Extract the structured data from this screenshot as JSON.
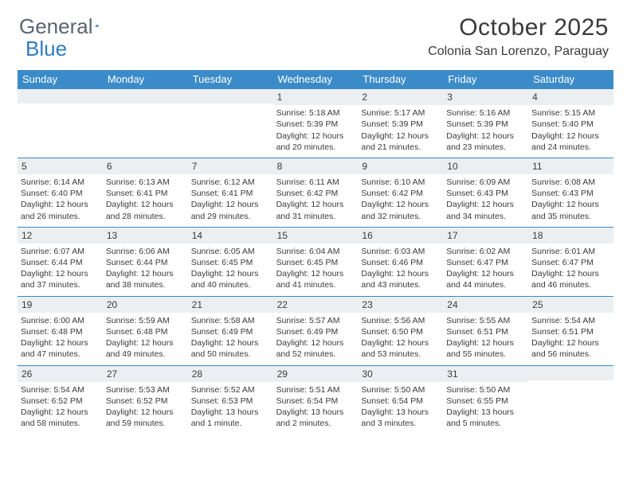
{
  "brand": {
    "part1": "General",
    "part2": "Blue"
  },
  "title": "October 2025",
  "location": "Colonia San Lorenzo, Paraguay",
  "colors": {
    "header_bg": "#3b8bc9",
    "daynum_bg": "#eceff1",
    "text": "#3a3a3a",
    "logo_gray": "#5a6570",
    "logo_blue": "#2e7cc0"
  },
  "day_names": [
    "Sunday",
    "Monday",
    "Tuesday",
    "Wednesday",
    "Thursday",
    "Friday",
    "Saturday"
  ],
  "weeks": [
    [
      {
        "n": "",
        "sr": "",
        "ss": "",
        "dl1": "",
        "dl2": ""
      },
      {
        "n": "",
        "sr": "",
        "ss": "",
        "dl1": "",
        "dl2": ""
      },
      {
        "n": "",
        "sr": "",
        "ss": "",
        "dl1": "",
        "dl2": ""
      },
      {
        "n": "1",
        "sr": "Sunrise: 5:18 AM",
        "ss": "Sunset: 5:39 PM",
        "dl1": "Daylight: 12 hours",
        "dl2": "and 20 minutes."
      },
      {
        "n": "2",
        "sr": "Sunrise: 5:17 AM",
        "ss": "Sunset: 5:39 PM",
        "dl1": "Daylight: 12 hours",
        "dl2": "and 21 minutes."
      },
      {
        "n": "3",
        "sr": "Sunrise: 5:16 AM",
        "ss": "Sunset: 5:39 PM",
        "dl1": "Daylight: 12 hours",
        "dl2": "and 23 minutes."
      },
      {
        "n": "4",
        "sr": "Sunrise: 5:15 AM",
        "ss": "Sunset: 5:40 PM",
        "dl1": "Daylight: 12 hours",
        "dl2": "and 24 minutes."
      }
    ],
    [
      {
        "n": "5",
        "sr": "Sunrise: 6:14 AM",
        "ss": "Sunset: 6:40 PM",
        "dl1": "Daylight: 12 hours",
        "dl2": "and 26 minutes."
      },
      {
        "n": "6",
        "sr": "Sunrise: 6:13 AM",
        "ss": "Sunset: 6:41 PM",
        "dl1": "Daylight: 12 hours",
        "dl2": "and 28 minutes."
      },
      {
        "n": "7",
        "sr": "Sunrise: 6:12 AM",
        "ss": "Sunset: 6:41 PM",
        "dl1": "Daylight: 12 hours",
        "dl2": "and 29 minutes."
      },
      {
        "n": "8",
        "sr": "Sunrise: 6:11 AM",
        "ss": "Sunset: 6:42 PM",
        "dl1": "Daylight: 12 hours",
        "dl2": "and 31 minutes."
      },
      {
        "n": "9",
        "sr": "Sunrise: 6:10 AM",
        "ss": "Sunset: 6:42 PM",
        "dl1": "Daylight: 12 hours",
        "dl2": "and 32 minutes."
      },
      {
        "n": "10",
        "sr": "Sunrise: 6:09 AM",
        "ss": "Sunset: 6:43 PM",
        "dl1": "Daylight: 12 hours",
        "dl2": "and 34 minutes."
      },
      {
        "n": "11",
        "sr": "Sunrise: 6:08 AM",
        "ss": "Sunset: 6:43 PM",
        "dl1": "Daylight: 12 hours",
        "dl2": "and 35 minutes."
      }
    ],
    [
      {
        "n": "12",
        "sr": "Sunrise: 6:07 AM",
        "ss": "Sunset: 6:44 PM",
        "dl1": "Daylight: 12 hours",
        "dl2": "and 37 minutes."
      },
      {
        "n": "13",
        "sr": "Sunrise: 6:06 AM",
        "ss": "Sunset: 6:44 PM",
        "dl1": "Daylight: 12 hours",
        "dl2": "and 38 minutes."
      },
      {
        "n": "14",
        "sr": "Sunrise: 6:05 AM",
        "ss": "Sunset: 6:45 PM",
        "dl1": "Daylight: 12 hours",
        "dl2": "and 40 minutes."
      },
      {
        "n": "15",
        "sr": "Sunrise: 6:04 AM",
        "ss": "Sunset: 6:45 PM",
        "dl1": "Daylight: 12 hours",
        "dl2": "and 41 minutes."
      },
      {
        "n": "16",
        "sr": "Sunrise: 6:03 AM",
        "ss": "Sunset: 6:46 PM",
        "dl1": "Daylight: 12 hours",
        "dl2": "and 43 minutes."
      },
      {
        "n": "17",
        "sr": "Sunrise: 6:02 AM",
        "ss": "Sunset: 6:47 PM",
        "dl1": "Daylight: 12 hours",
        "dl2": "and 44 minutes."
      },
      {
        "n": "18",
        "sr": "Sunrise: 6:01 AM",
        "ss": "Sunset: 6:47 PM",
        "dl1": "Daylight: 12 hours",
        "dl2": "and 46 minutes."
      }
    ],
    [
      {
        "n": "19",
        "sr": "Sunrise: 6:00 AM",
        "ss": "Sunset: 6:48 PM",
        "dl1": "Daylight: 12 hours",
        "dl2": "and 47 minutes."
      },
      {
        "n": "20",
        "sr": "Sunrise: 5:59 AM",
        "ss": "Sunset: 6:48 PM",
        "dl1": "Daylight: 12 hours",
        "dl2": "and 49 minutes."
      },
      {
        "n": "21",
        "sr": "Sunrise: 5:58 AM",
        "ss": "Sunset: 6:49 PM",
        "dl1": "Daylight: 12 hours",
        "dl2": "and 50 minutes."
      },
      {
        "n": "22",
        "sr": "Sunrise: 5:57 AM",
        "ss": "Sunset: 6:49 PM",
        "dl1": "Daylight: 12 hours",
        "dl2": "and 52 minutes."
      },
      {
        "n": "23",
        "sr": "Sunrise: 5:56 AM",
        "ss": "Sunset: 6:50 PM",
        "dl1": "Daylight: 12 hours",
        "dl2": "and 53 minutes."
      },
      {
        "n": "24",
        "sr": "Sunrise: 5:55 AM",
        "ss": "Sunset: 6:51 PM",
        "dl1": "Daylight: 12 hours",
        "dl2": "and 55 minutes."
      },
      {
        "n": "25",
        "sr": "Sunrise: 5:54 AM",
        "ss": "Sunset: 6:51 PM",
        "dl1": "Daylight: 12 hours",
        "dl2": "and 56 minutes."
      }
    ],
    [
      {
        "n": "26",
        "sr": "Sunrise: 5:54 AM",
        "ss": "Sunset: 6:52 PM",
        "dl1": "Daylight: 12 hours",
        "dl2": "and 58 minutes."
      },
      {
        "n": "27",
        "sr": "Sunrise: 5:53 AM",
        "ss": "Sunset: 6:52 PM",
        "dl1": "Daylight: 12 hours",
        "dl2": "and 59 minutes."
      },
      {
        "n": "28",
        "sr": "Sunrise: 5:52 AM",
        "ss": "Sunset: 6:53 PM",
        "dl1": "Daylight: 13 hours",
        "dl2": "and 1 minute."
      },
      {
        "n": "29",
        "sr": "Sunrise: 5:51 AM",
        "ss": "Sunset: 6:54 PM",
        "dl1": "Daylight: 13 hours",
        "dl2": "and 2 minutes."
      },
      {
        "n": "30",
        "sr": "Sunrise: 5:50 AM",
        "ss": "Sunset: 6:54 PM",
        "dl1": "Daylight: 13 hours",
        "dl2": "and 3 minutes."
      },
      {
        "n": "31",
        "sr": "Sunrise: 5:50 AM",
        "ss": "Sunset: 6:55 PM",
        "dl1": "Daylight: 13 hours",
        "dl2": "and 5 minutes."
      },
      {
        "n": "",
        "sr": "",
        "ss": "",
        "dl1": "",
        "dl2": ""
      }
    ]
  ]
}
